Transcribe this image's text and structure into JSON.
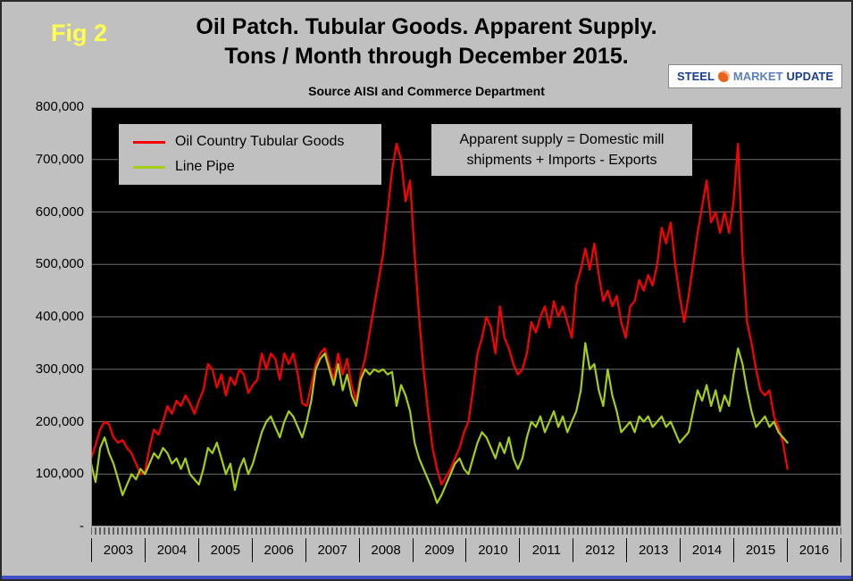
{
  "fig_label": "Fig 2",
  "title": {
    "line1": "Oil Patch. Tubular Goods. Apparent Supply.",
    "line2": "Tons / Month through December 2015."
  },
  "subtitle": "Source AISI and Commerce Department",
  "logo": {
    "word1": "STEEL",
    "word2": "MARKET",
    "word3": "UPDATE"
  },
  "legend": {
    "items": [
      {
        "label": "Oil Country Tubular Goods",
        "color": "#ff0000"
      },
      {
        "label": "Line Pipe",
        "color": "#a6ce13"
      }
    ]
  },
  "annotation": {
    "line1": "Apparent supply = Domestic mill",
    "line2": "shipments + Imports - Exports"
  },
  "axis": {
    "y_ticks": [
      "800,000",
      "700,000",
      "600,000",
      "500,000",
      "400,000",
      "300,000",
      "200,000",
      "100,000",
      "-"
    ],
    "x_years": [
      "2003",
      "2004",
      "2005",
      "2006",
      "2007",
      "2008",
      "2009",
      "2010",
      "2011",
      "2012",
      "2013",
      "2014",
      "2015",
      "2016"
    ]
  },
  "chart_data": {
    "type": "line",
    "title": "Oil Patch. Tubular Goods. Apparent Supply. Tons / Month through December 2015.",
    "subtitle": "Source AISI and Commerce Department",
    "unit": "tons per month",
    "frequency": "monthly",
    "x_start": "2003-01",
    "x_end": "2015-12",
    "x_axis_span_years": [
      "2003",
      "2016"
    ],
    "ylim": [
      0,
      800000
    ],
    "y_gridline_step": 100000,
    "grid": true,
    "plot_background": "#000000",
    "legend_position": "top-left",
    "series": [
      {
        "name": "Oil Country Tubular Goods",
        "color": "#ff0000",
        "values": [
          130000,
          155000,
          185000,
          200000,
          195000,
          170000,
          160000,
          165000,
          150000,
          140000,
          120000,
          100000,
          105000,
          150000,
          185000,
          175000,
          200000,
          230000,
          215000,
          240000,
          230000,
          250000,
          235000,
          215000,
          240000,
          260000,
          310000,
          300000,
          265000,
          290000,
          250000,
          285000,
          270000,
          300000,
          290000,
          255000,
          270000,
          280000,
          330000,
          300000,
          330000,
          320000,
          280000,
          330000,
          310000,
          330000,
          290000,
          235000,
          230000,
          270000,
          310000,
          330000,
          340000,
          310000,
          280000,
          330000,
          290000,
          320000,
          270000,
          240000,
          290000,
          320000,
          370000,
          420000,
          470000,
          520000,
          600000,
          680000,
          730000,
          700000,
          620000,
          660000,
          520000,
          400000,
          300000,
          220000,
          150000,
          110000,
          80000,
          95000,
          110000,
          130000,
          150000,
          180000,
          200000,
          260000,
          330000,
          360000,
          400000,
          380000,
          330000,
          420000,
          360000,
          340000,
          310000,
          290000,
          300000,
          330000,
          390000,
          370000,
          400000,
          420000,
          380000,
          430000,
          400000,
          420000,
          390000,
          360000,
          460000,
          490000,
          530000,
          490000,
          540000,
          480000,
          430000,
          450000,
          420000,
          440000,
          390000,
          360000,
          420000,
          430000,
          470000,
          450000,
          480000,
          460000,
          500000,
          570000,
          540000,
          580000,
          500000,
          440000,
          390000,
          440000,
          500000,
          560000,
          610000,
          660000,
          580000,
          600000,
          560000,
          600000,
          560000,
          620000,
          730000,
          520000,
          390000,
          350000,
          300000,
          260000,
          250000,
          260000,
          210000,
          190000,
          160000,
          110000
        ]
      },
      {
        "name": "Line Pipe",
        "color": "#a6ce13",
        "values": [
          120000,
          85000,
          150000,
          170000,
          140000,
          120000,
          90000,
          60000,
          80000,
          100000,
          90000,
          110000,
          100000,
          120000,
          140000,
          130000,
          150000,
          140000,
          120000,
          130000,
          110000,
          130000,
          100000,
          90000,
          80000,
          110000,
          150000,
          140000,
          160000,
          130000,
          100000,
          120000,
          70000,
          110000,
          130000,
          100000,
          120000,
          150000,
          180000,
          200000,
          210000,
          190000,
          170000,
          200000,
          220000,
          210000,
          190000,
          170000,
          200000,
          240000,
          300000,
          320000,
          330000,
          300000,
          270000,
          310000,
          260000,
          290000,
          250000,
          230000,
          280000,
          300000,
          290000,
          300000,
          295000,
          300000,
          290000,
          295000,
          230000,
          270000,
          250000,
          220000,
          160000,
          130000,
          110000,
          90000,
          70000,
          45000,
          60000,
          80000,
          100000,
          120000,
          130000,
          110000,
          100000,
          130000,
          160000,
          180000,
          170000,
          150000,
          130000,
          160000,
          140000,
          170000,
          130000,
          110000,
          130000,
          170000,
          200000,
          190000,
          210000,
          180000,
          200000,
          220000,
          190000,
          210000,
          180000,
          200000,
          220000,
          260000,
          350000,
          300000,
          310000,
          260000,
          230000,
          300000,
          250000,
          220000,
          180000,
          190000,
          200000,
          180000,
          210000,
          200000,
          210000,
          190000,
          200000,
          210000,
          190000,
          200000,
          180000,
          160000,
          170000,
          180000,
          220000,
          260000,
          240000,
          270000,
          230000,
          260000,
          220000,
          250000,
          230000,
          290000,
          340000,
          310000,
          260000,
          220000,
          190000,
          200000,
          210000,
          190000,
          200000,
          180000,
          170000,
          160000
        ]
      }
    ]
  }
}
